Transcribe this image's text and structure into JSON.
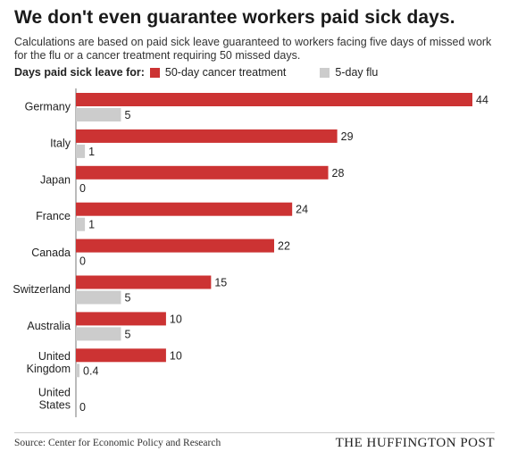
{
  "title": "We don't even guarantee workers paid sick days.",
  "subtitle": "Calculations are based on paid sick leave guaranteed to workers facing five days of missed work for the flu or a cancer treatment requiring 50 missed days.",
  "legend": {
    "lead": "Days paid sick leave for:",
    "items": [
      {
        "label": "50-day cancer treatment",
        "color": "#cc3333"
      },
      {
        "label": "5-day flu",
        "color": "#cccccc"
      }
    ]
  },
  "source": "Source: Center for Economic Policy and Research",
  "brand": "THE HUFFINGTON POST",
  "chart_data": {
    "type": "bar",
    "orientation": "horizontal",
    "categories": [
      [
        "Germany"
      ],
      [
        "Italy"
      ],
      [
        "Japan"
      ],
      [
        "France"
      ],
      [
        "Canada"
      ],
      [
        "Switzerland"
      ],
      [
        "Australia"
      ],
      [
        "United",
        "Kingdom"
      ],
      [
        "United",
        "States"
      ]
    ],
    "series": [
      {
        "name": "50-day cancer treatment",
        "color": "#cc3333",
        "values": [
          44,
          29,
          28,
          24,
          22,
          15,
          10,
          10,
          0
        ],
        "labels": [
          "44",
          "29",
          "28",
          "24",
          "22",
          "15",
          "10",
          "10",
          ""
        ]
      },
      {
        "name": "5-day flu",
        "color": "#cccccc",
        "values": [
          5,
          1,
          0,
          1,
          0,
          5,
          5,
          0.4,
          0
        ],
        "labels": [
          "5",
          "1",
          "0",
          "1",
          "0",
          "5",
          "5",
          "0.4",
          "0"
        ]
      }
    ],
    "xlim": [
      0,
      44
    ],
    "grid": false
  }
}
